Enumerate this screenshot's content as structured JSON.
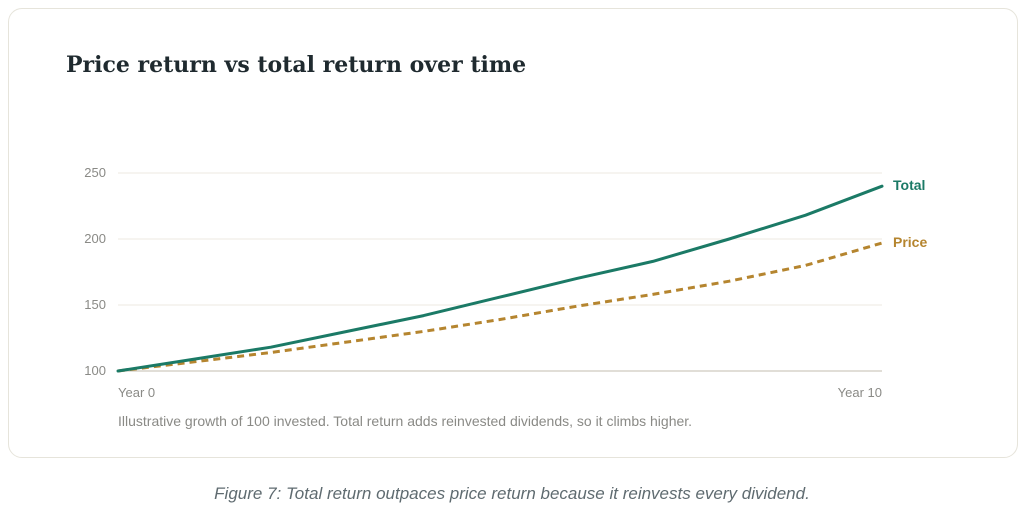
{
  "chart_data": {
    "type": "line",
    "title": "Price return vs total return over time",
    "x": [
      0,
      1,
      2,
      3,
      4,
      5,
      6,
      7,
      8,
      9,
      10
    ],
    "x_tick_labels": [
      {
        "x": 0,
        "label": "Year 0"
      },
      {
        "x": 10,
        "label": "Year 10"
      }
    ],
    "y_ticks": [
      100,
      150,
      200,
      250
    ],
    "ylim": [
      100,
      250
    ],
    "xlim": [
      0,
      10
    ],
    "grid": true,
    "legend": "inline-right",
    "series": [
      {
        "name": "Total",
        "color": "#1b7a66",
        "style": "solid",
        "values": [
          100,
          109,
          118,
          130,
          142,
          156,
          170,
          183,
          200,
          218,
          240
        ]
      },
      {
        "name": "Price",
        "color": "#b5852f",
        "style": "dashed",
        "values": [
          100,
          107,
          114,
          122,
          130,
          139,
          149,
          158,
          168,
          180,
          197
        ]
      }
    ],
    "note": "Illustrative growth of 100 invested. Total return adds reinvested dividends, so it climbs higher."
  },
  "figure_caption": "Figure 7: Total return outpaces price return because it reinvests every dividend."
}
